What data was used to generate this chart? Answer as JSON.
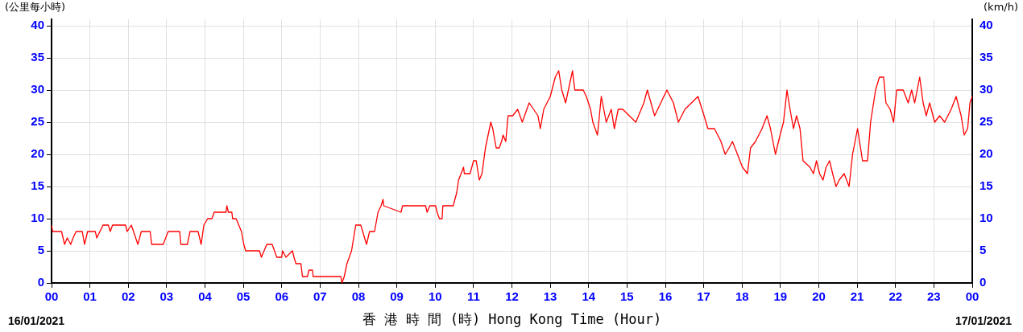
{
  "chart_data": {
    "type": "line",
    "xlabel": "香 港 時 間 (時) Hong Kong Time (Hour)",
    "ylabel": "(公里每小時)",
    "y2label": "(km/h)",
    "annotations": [
      "16/01/2021",
      "17/01/2021"
    ],
    "xlim": [
      0,
      24
    ],
    "xticks": [
      {
        "value": 0,
        "label": "00"
      },
      {
        "value": 1,
        "label": "01"
      },
      {
        "value": 2,
        "label": "02"
      },
      {
        "value": 3,
        "label": "03"
      },
      {
        "value": 4,
        "label": "04"
      },
      {
        "value": 5,
        "label": "05"
      },
      {
        "value": 6,
        "label": "06"
      },
      {
        "value": 7,
        "label": "07"
      },
      {
        "value": 8,
        "label": "08"
      },
      {
        "value": 9,
        "label": "09"
      },
      {
        "value": 10,
        "label": "10"
      },
      {
        "value": 11,
        "label": "11"
      },
      {
        "value": 12,
        "label": "12"
      },
      {
        "value": 13,
        "label": "13"
      },
      {
        "value": 14,
        "label": "14"
      },
      {
        "value": 15,
        "label": "15"
      },
      {
        "value": 16,
        "label": "16"
      },
      {
        "value": 17,
        "label": "17"
      },
      {
        "value": 18,
        "label": "18"
      },
      {
        "value": 19,
        "label": "19"
      },
      {
        "value": 20,
        "label": "20"
      },
      {
        "value": 21,
        "label": "21"
      },
      {
        "value": 22,
        "label": "22"
      },
      {
        "value": 23,
        "label": "23"
      },
      {
        "value": 24,
        "label": "00"
      }
    ],
    "ylim": [
      0,
      41
    ],
    "yticks": [
      0,
      5,
      10,
      15,
      20,
      25,
      30,
      35,
      40
    ],
    "y2lim": [
      0,
      41
    ],
    "y2ticks": [
      0,
      5,
      10,
      15,
      20,
      25,
      30,
      35,
      40
    ],
    "grid": true,
    "legend": false,
    "marker": "none",
    "line_style": "solid",
    "series": [
      {
        "color": "#ff0000",
        "x": [
          0,
          0.03,
          0.26,
          0.34,
          0.41,
          0.5,
          0.56,
          0.64,
          0.8,
          0.86,
          0.94,
          1.14,
          1.18,
          1.34,
          1.48,
          1.53,
          1.59,
          1.93,
          1.97,
          2.08,
          2.25,
          2.34,
          2.57,
          2.61,
          2.91,
          3.04,
          3.34,
          3.37,
          3.54,
          3.61,
          3.82,
          3.9,
          3.97,
          4.07,
          4.18,
          4.24,
          4.55,
          4.57,
          4.61,
          4.7,
          4.72,
          4.81,
          4.95,
          5.01,
          5.06,
          5.42,
          5.47,
          5.61,
          5.75,
          5.87,
          6.0,
          6.02,
          6.11,
          6.28,
          6.32,
          6.37,
          6.5,
          6.54,
          6.67,
          6.71,
          6.8,
          6.82,
          7.54,
          7.57,
          7.63,
          7.7,
          7.82,
          7.93,
          8.06,
          8.21,
          8.29,
          8.42,
          8.51,
          8.59,
          8.64,
          8.66,
          9.11,
          9.15,
          9.75,
          9.79,
          9.86,
          10.01,
          10.05,
          10.11,
          10.18,
          10.2,
          10.47,
          10.56,
          10.61,
          10.74,
          10.76,
          10.91,
          11.0,
          11.07,
          11.15,
          11.22,
          11.31,
          11.45,
          11.5,
          11.59,
          11.67,
          11.73,
          11.77,
          11.84,
          11.9,
          12.02,
          12.15,
          12.27,
          12.45,
          12.68,
          12.74,
          12.83,
          13.0,
          13.13,
          13.22,
          13.3,
          13.4,
          13.58,
          13.64,
          13.86,
          13.94,
          14.05,
          14.11,
          14.23,
          14.33,
          14.46,
          14.59,
          14.67,
          14.77,
          14.89,
          15.23,
          15.44,
          15.53,
          15.72,
          16.04,
          16.21,
          16.34,
          16.51,
          16.85,
          17.01,
          17.11,
          17.28,
          17.45,
          17.56,
          17.66,
          17.75,
          17.88,
          18.01,
          18.14,
          18.22,
          18.35,
          18.52,
          18.65,
          18.74,
          18.87,
          18.99,
          19.08,
          19.17,
          19.25,
          19.34,
          19.42,
          19.51,
          19.59,
          19.77,
          19.86,
          19.94,
          20.02,
          20.11,
          20.19,
          20.28,
          20.36,
          20.45,
          20.53,
          20.66,
          20.79,
          20.88,
          21.01,
          21.14,
          21.27,
          21.35,
          21.48,
          21.58,
          21.69,
          21.75,
          21.86,
          21.95,
          22.03,
          22.2,
          22.33,
          22.42,
          22.5,
          22.63,
          22.72,
          22.8,
          22.89,
          23.02,
          23.15,
          23.28,
          23.45,
          23.58,
          23.71,
          23.79,
          23.88,
          23.94,
          24.0
        ],
        "values": [
          9,
          8,
          8,
          6,
          7,
          6,
          7,
          8,
          8,
          6,
          8,
          8,
          7,
          9,
          9,
          8,
          9,
          9,
          8,
          9,
          6,
          8,
          8,
          6,
          6,
          8,
          8,
          6,
          6,
          8,
          8,
          6,
          9,
          10,
          10,
          11,
          11,
          12,
          11,
          11,
          10,
          10,
          8,
          6,
          5,
          5,
          4,
          6,
          6,
          4,
          4,
          5,
          4,
          5,
          4,
          3,
          3,
          1,
          1,
          2,
          2,
          1,
          1,
          0,
          1,
          3,
          5,
          9,
          9,
          6,
          8,
          8,
          11,
          12,
          13,
          12,
          11,
          12,
          12,
          11,
          12,
          12,
          11,
          10,
          10,
          12,
          12,
          14,
          16,
          18,
          17,
          17,
          19,
          19,
          16,
          17,
          21,
          25,
          24,
          21,
          21,
          22,
          23,
          22,
          26,
          26,
          27,
          25,
          28,
          26,
          24,
          27,
          29,
          32,
          33,
          30,
          28,
          33,
          30,
          30,
          29,
          27,
          25,
          23,
          29,
          25,
          27,
          24,
          27,
          27,
          25,
          28,
          30,
          26,
          30,
          28,
          25,
          27,
          29,
          26,
          24,
          24,
          22,
          20,
          21,
          22,
          20,
          18,
          17,
          21,
          22,
          24,
          26,
          24,
          20,
          23,
          25,
          30,
          27,
          24,
          26,
          24,
          19,
          18,
          17,
          19,
          17,
          16,
          18,
          19,
          17,
          15,
          16,
          17,
          15,
          20,
          24,
          19,
          19,
          25,
          30,
          32,
          32,
          28,
          27,
          25,
          30,
          30,
          28,
          30,
          28,
          32,
          28,
          26,
          28,
          25,
          26,
          25,
          27,
          29,
          26,
          23,
          24,
          28,
          29
        ]
      }
    ]
  }
}
